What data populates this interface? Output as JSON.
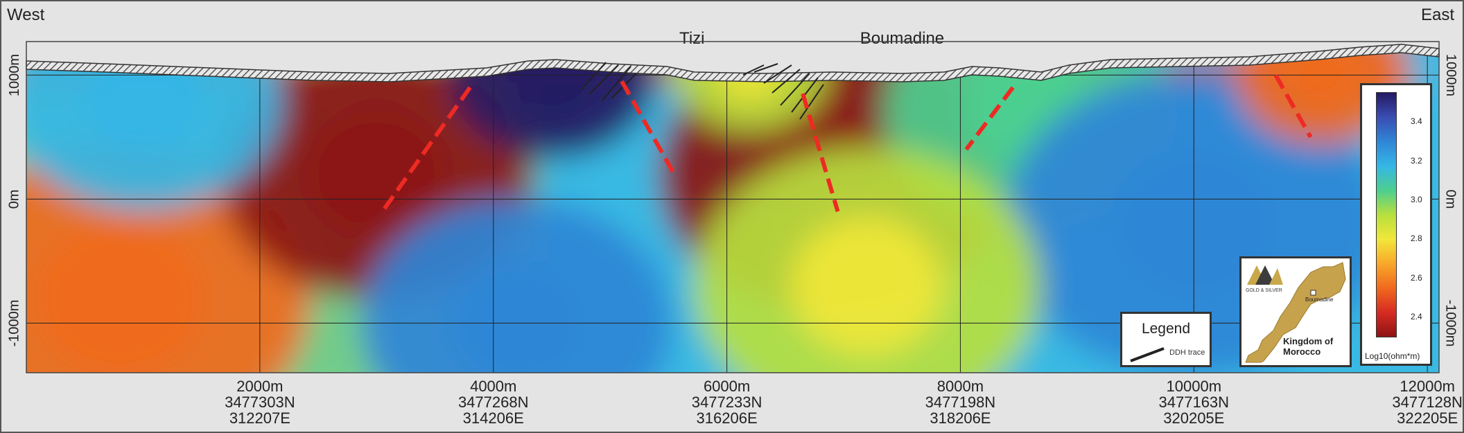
{
  "labels": {
    "west": "West",
    "east": "East",
    "places": [
      {
        "name": "Tizi",
        "x_m": 5700
      },
      {
        "name": "Boumadine",
        "x_m": 7500
      }
    ]
  },
  "chart_data": {
    "type": "heatmap",
    "title": "",
    "xlabel": "",
    "ylabel": "",
    "xlim": [
      0,
      12100
    ],
    "ylim": [
      -1400,
      1270
    ],
    "x_ticks": [
      {
        "label": "2000m",
        "northing": "3477303N",
        "easting": "312207E",
        "x": 2000
      },
      {
        "label": "4000m",
        "northing": "3477268N",
        "easting": "314206E",
        "x": 4000
      },
      {
        "label": "6000m",
        "northing": "3477233N",
        "easting": "316206E",
        "x": 6000
      },
      {
        "label": "8000m",
        "northing": "3477198N",
        "easting": "318206E",
        "x": 8000
      },
      {
        "label": "10000m",
        "northing": "3477163N",
        "easting": "320205E",
        "x": 10000
      },
      {
        "label": "12000m",
        "northing": "3477128N",
        "easting": "322205E",
        "x": 12000
      }
    ],
    "y_ticks": [
      {
        "label": "1000m",
        "y": 1000
      },
      {
        "label": "0m",
        "y": 0
      },
      {
        "label": "-1000m",
        "y": -1000
      }
    ],
    "grid": true,
    "colorbar": {
      "label": "Log10(ohm*m)",
      "ticks": [
        "3.4",
        "3.2",
        "3.0",
        "2.8",
        "2.6",
        "2.4"
      ],
      "min": 2.3,
      "max": 3.55,
      "colors": [
        "#8c1414",
        "#d72b22",
        "#f06a1e",
        "#f9a82a",
        "#f1e73a",
        "#b7df3e",
        "#4dcf8f",
        "#35b6e6",
        "#2f86d6",
        "#3a4db2",
        "#251a63"
      ]
    },
    "anomalies": [
      {
        "x": 800,
        "y": -800,
        "value": 2.6
      },
      {
        "x": 3000,
        "y": 200,
        "value": 2.35
      },
      {
        "x": 6900,
        "y": 200,
        "value": 2.3
      },
      {
        "x": 4500,
        "y": 1000,
        "value": 3.55
      },
      {
        "x": 4200,
        "y": -1000,
        "value": 3.35
      },
      {
        "x": 1000,
        "y": 800,
        "value": 3.2
      },
      {
        "x": 8600,
        "y": 700,
        "value": 3.1
      },
      {
        "x": 10000,
        "y": -200,
        "value": 3.3
      },
      {
        "x": 11100,
        "y": 1000,
        "value": 2.6
      },
      {
        "x": 7200,
        "y": -700,
        "value": 2.9
      },
      {
        "x": 6200,
        "y": 1050,
        "value": 2.9
      }
    ],
    "interpreted_structures": [
      {
        "x1": 3800,
        "y1": 900,
        "x2": 3050,
        "y2": -100
      },
      {
        "x1": 5100,
        "y1": 950,
        "x2": 5550,
        "y2": 200
      },
      {
        "x1": 6650,
        "y1": 850,
        "x2": 6950,
        "y2": -100
      },
      {
        "x1": 8450,
        "y1": 900,
        "x2": 8050,
        "y2": 400
      },
      {
        "x1": 10700,
        "y1": 1000,
        "x2": 11000,
        "y2": 500
      }
    ]
  },
  "legend": {
    "title": "Legend",
    "items": [
      {
        "label": "DDH trace"
      }
    ]
  },
  "map_inset": {
    "company": "GOLD & SILVER",
    "location": "Boumadine",
    "country": "Kingdom of Morocco"
  }
}
